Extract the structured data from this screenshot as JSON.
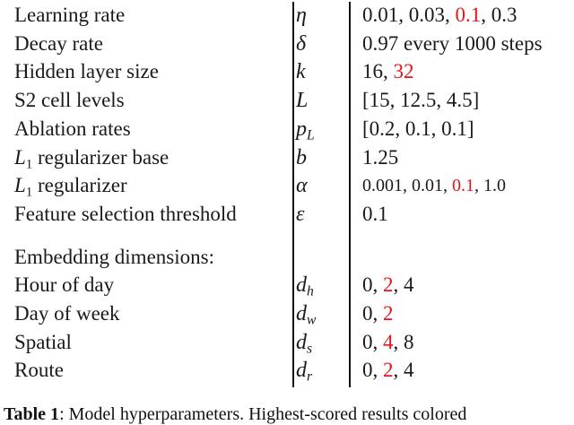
{
  "table": {
    "rows": [
      {
        "param": "Learning rate",
        "symbol": "η",
        "values": [
          "0.01",
          ", ",
          "0.03",
          ", ",
          "0.1",
          ", ",
          "0.3"
        ],
        "highlight": [
          4
        ]
      },
      {
        "param": "Decay rate",
        "symbol": "δ",
        "values": [
          "0.97 every 1000 steps"
        ],
        "highlight": []
      },
      {
        "param": "Hidden layer size",
        "symbol": "k",
        "values": [
          "16",
          ", ",
          "32"
        ],
        "highlight": [
          2
        ]
      },
      {
        "param": "S2 cell levels",
        "symbol": "L",
        "values": [
          "[15, 12.5, 4.5]"
        ],
        "highlight": []
      },
      {
        "param": "Ablation rates",
        "symbol": "p",
        "symbol_sub": "L",
        "values": [
          "[0.2, 0.1, 0.1]"
        ],
        "highlight": []
      },
      {
        "param_math": "L",
        "param_sub": "1",
        "param_rest": " regularizer base",
        "symbol": "b",
        "values": [
          "1.25"
        ],
        "highlight": []
      },
      {
        "param_math": "L",
        "param_sub": "1",
        "param_rest": " regularizer",
        "symbol": "α",
        "values": [
          "0.001, 0.01, ",
          "0.1",
          ", 1.0"
        ],
        "highlight": [
          1
        ],
        "small": true
      },
      {
        "param": "Feature selection threshold",
        "symbol": "ε",
        "values": [
          "0.1"
        ],
        "highlight": []
      }
    ],
    "section_label": "Embedding dimensions:",
    "embedding_rows": [
      {
        "param": "Hour of day",
        "symbol": "d",
        "symbol_sub": "h",
        "values": [
          "0",
          ", ",
          "2",
          ", ",
          "4"
        ],
        "highlight": [
          2
        ]
      },
      {
        "param": "Day of week",
        "symbol": "d",
        "symbol_sub": "w",
        "values": [
          "0",
          ", ",
          "2"
        ],
        "highlight": [
          2
        ]
      },
      {
        "param": "Spatial",
        "symbol": "d",
        "symbol_sub": "s",
        "values": [
          "0",
          ", ",
          "4",
          ", ",
          "8"
        ],
        "highlight": [
          2
        ]
      },
      {
        "param": "Route",
        "symbol": "d",
        "symbol_sub": "r",
        "values": [
          "0",
          ", ",
          "2",
          ", ",
          "4"
        ],
        "highlight": [
          2
        ]
      }
    ]
  },
  "caption": {
    "label": "Table 1",
    "text": ": Model hyperparameters. Highest-scored results colored"
  },
  "colors": {
    "highlight": "#e8141b",
    "text": "#1a1a1a"
  }
}
